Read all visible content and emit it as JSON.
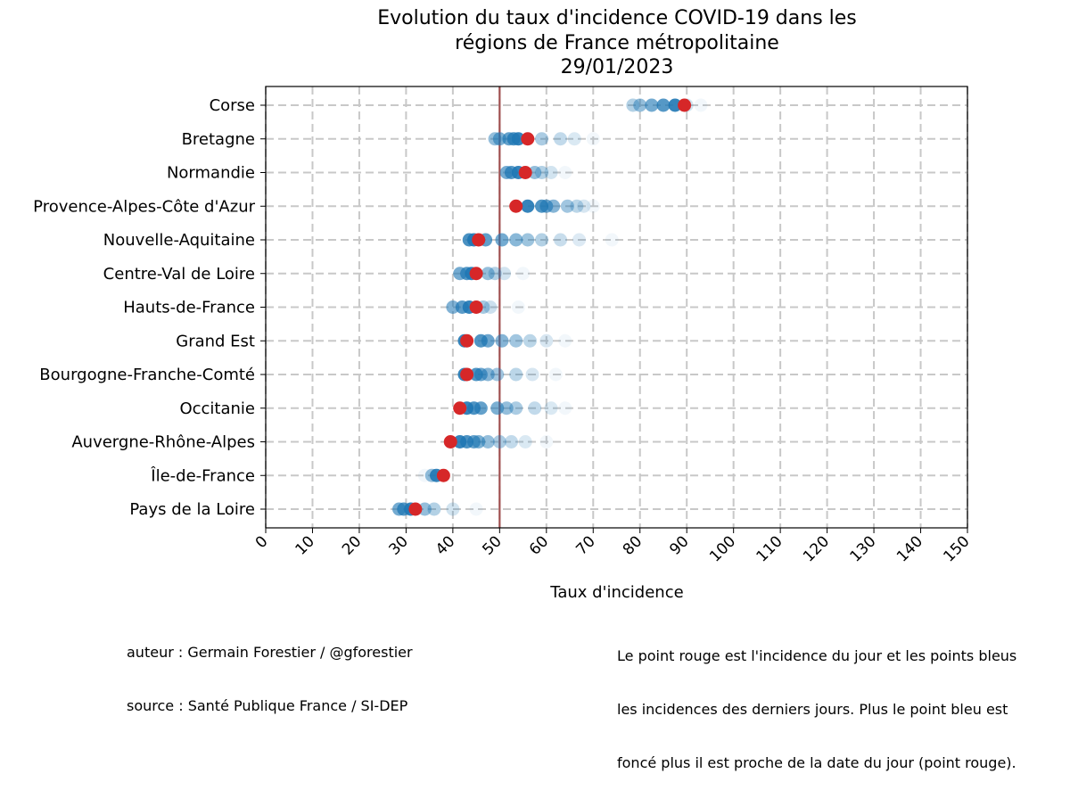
{
  "chart_data": {
    "type": "scatter",
    "title_lines": [
      "Evolution du taux d'incidence COVID-19 dans les",
      "régions de France métropolitaine",
      "29/01/2023"
    ],
    "xlabel": "Taux d'incidence",
    "xlim": [
      0,
      150
    ],
    "xticks": [
      0,
      10,
      20,
      30,
      40,
      50,
      60,
      70,
      80,
      90,
      100,
      110,
      120,
      130,
      140,
      150
    ],
    "grid": true,
    "reference_line": 50,
    "colors": {
      "today": "#d62728",
      "past": "#1f77b4",
      "reference": "#a05050",
      "grid": "#c8c8c8"
    },
    "categories": [
      "Corse",
      "Bretagne",
      "Normandie",
      "Provence-Alpes-Côte d'Azur",
      "Nouvelle-Aquitaine",
      "Centre-Val de Loire",
      "Hauts-de-France",
      "Grand Est",
      "Bourgogne-Franche-Comté",
      "Occitanie",
      "Auvergne-Rhône-Alpes",
      "Île-de-France",
      "Pays de la Loire"
    ],
    "series": [
      {
        "today": 89.5,
        "past": [
          87.5,
          85,
          82.5,
          80,
          78.5,
          90,
          93
        ]
      },
      {
        "today": 56.0,
        "past": [
          54,
          53,
          52,
          50,
          49,
          59,
          63,
          66,
          70
        ]
      },
      {
        "today": 55.5,
        "past": [
          54,
          52.5,
          51.5,
          57.5,
          59,
          61,
          64
        ]
      },
      {
        "today": 53.5,
        "past": [
          56,
          59,
          60,
          61.5,
          64.5,
          66.5,
          68,
          70
        ]
      },
      {
        "today": 45.5,
        "past": [
          44.5,
          43.5,
          47,
          50.5,
          53.5,
          56,
          59,
          63,
          67,
          74
        ]
      },
      {
        "today": 45.0,
        "past": [
          44,
          43,
          41.5,
          47.5,
          49,
          51,
          55
        ]
      },
      {
        "today": 45.0,
        "past": [
          43.5,
          42,
          40,
          46.5,
          48,
          54
        ]
      },
      {
        "today": 43.0,
        "past": [
          42.5,
          46,
          47.5,
          50.5,
          53.5,
          56.5,
          60,
          64
        ]
      },
      {
        "today": 43.0,
        "past": [
          42.5,
          45,
          46,
          47.5,
          49.5,
          53.5,
          57,
          62
        ]
      },
      {
        "today": 41.5,
        "past": [
          43,
          44.5,
          46,
          49.5,
          51.5,
          53.5,
          57.5,
          61,
          64
        ]
      },
      {
        "today": 39.5,
        "past": [
          41.5,
          43,
          44.5,
          45.5,
          47.5,
          50,
          52.5,
          55.5,
          60
        ]
      },
      {
        "today": 38.0,
        "past": [
          36.5,
          35.5,
          34
        ]
      },
      {
        "today": 32.0,
        "past": [
          31,
          29.5,
          28.5,
          34,
          36,
          40,
          45
        ]
      }
    ]
  },
  "footer": {
    "author": "auteur : Germain Forestier / @gforestier",
    "source": "source : Santé Publique France / SI-DEP",
    "note_lines": [
      "Le point rouge est l'incidence du jour et les points bleus",
      "les incidences des derniers jours. Plus le point bleu est",
      "foncé plus il est proche de la date du jour (point rouge)."
    ]
  }
}
